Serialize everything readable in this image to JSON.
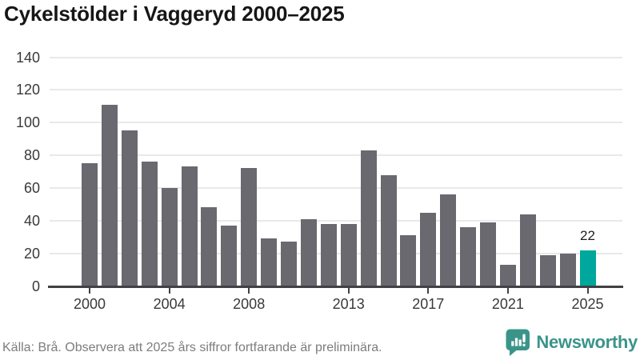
{
  "page": {
    "title": "Cykelstölder i Vaggeryd 2000–2025",
    "source_note": "Källa: Brå. Observera att 2025 års siffror fortfarande är preliminära.",
    "brand_name": "Newsworthy"
  },
  "chart_data": {
    "type": "bar",
    "title": "Cykelstölder i Vaggeryd 2000–2025",
    "xlabel": "",
    "ylabel": "",
    "categories": [
      2000,
      2001,
      2002,
      2003,
      2004,
      2005,
      2006,
      2007,
      2008,
      2009,
      2010,
      2011,
      2012,
      2013,
      2014,
      2015,
      2016,
      2017,
      2018,
      2019,
      2020,
      2021,
      2022,
      2023,
      2024,
      2025
    ],
    "values": [
      75,
      111,
      95,
      76,
      60,
      73,
      48,
      37,
      72,
      29,
      27,
      41,
      38,
      38,
      83,
      68,
      31,
      45,
      56,
      36,
      39,
      13,
      44,
      19,
      20,
      22
    ],
    "ylim": [
      0,
      140
    ],
    "y_ticks": [
      0,
      20,
      40,
      60,
      80,
      100,
      120,
      140
    ],
    "x_tick_years": [
      2000,
      2004,
      2008,
      2013,
      2017,
      2021,
      2025
    ],
    "grid": "horizontal",
    "legend": "none",
    "highlight": {
      "year": 2025,
      "value": 22,
      "label": "22"
    },
    "colors": {
      "bar": "#6a6970",
      "highlight_bar": "#00a79c",
      "axis": "#404144",
      "gridline": "#e9e9e9",
      "brand": "#3b9489"
    }
  }
}
